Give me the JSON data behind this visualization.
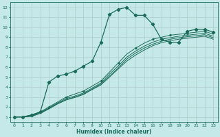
{
  "xlabel": "Humidex (Indice chaleur)",
  "bg_color": "#c5e8e8",
  "grid_color": "#b0cccc",
  "line_color": "#1a6b5a",
  "xlim": [
    -0.5,
    23.5
  ],
  "ylim": [
    0.5,
    12.5
  ],
  "xticks": [
    0,
    1,
    2,
    3,
    4,
    5,
    6,
    7,
    8,
    9,
    10,
    11,
    12,
    13,
    14,
    15,
    16,
    17,
    18,
    19,
    20,
    21,
    22,
    23
  ],
  "yticks": [
    1,
    2,
    3,
    4,
    5,
    6,
    7,
    8,
    9,
    10,
    11,
    12
  ],
  "curve_x": [
    0,
    1,
    2,
    3,
    4,
    5,
    6,
    7,
    8,
    9,
    10,
    11,
    12,
    13,
    14,
    15,
    16,
    17,
    18,
    19,
    20,
    21,
    22,
    23
  ],
  "curve_y": [
    1,
    1,
    1.2,
    1.5,
    4.5,
    5.1,
    5.3,
    5.6,
    6.1,
    6.6,
    8.5,
    11.3,
    11.8,
    12.0,
    11.2,
    11.2,
    10.3,
    8.8,
    8.5,
    8.5,
    9.6,
    9.8,
    9.8,
    9.5
  ],
  "lin1_x": [
    0,
    1,
    2,
    3,
    4,
    5,
    6,
    7,
    8,
    9,
    10,
    11,
    12,
    13,
    14,
    15,
    16,
    17,
    18,
    19,
    20,
    21,
    22,
    23
  ],
  "lin1_y": [
    1,
    1,
    1.2,
    1.5,
    2.0,
    2.5,
    3.0,
    3.3,
    3.6,
    4.1,
    4.6,
    5.5,
    6.4,
    7.3,
    7.9,
    8.4,
    8.8,
    9.0,
    9.2,
    9.3,
    9.4,
    9.5,
    9.6,
    9.3
  ],
  "lin2_x": [
    0,
    1,
    2,
    3,
    4,
    5,
    6,
    7,
    8,
    9,
    10,
    11,
    12,
    13,
    14,
    15,
    16,
    17,
    18,
    19,
    20,
    21,
    22,
    23
  ],
  "lin2_y": [
    1,
    1,
    1.15,
    1.45,
    1.9,
    2.4,
    2.85,
    3.1,
    3.4,
    3.9,
    4.4,
    5.3,
    6.1,
    7.0,
    7.6,
    8.1,
    8.5,
    8.8,
    8.95,
    9.1,
    9.2,
    9.3,
    9.4,
    9.1
  ],
  "lin3_x": [
    0,
    1,
    2,
    3,
    4,
    5,
    6,
    7,
    8,
    9,
    10,
    11,
    12,
    13,
    14,
    15,
    16,
    17,
    18,
    19,
    20,
    21,
    22,
    23
  ],
  "lin3_y": [
    1,
    1,
    1.1,
    1.4,
    1.85,
    2.35,
    2.75,
    3.0,
    3.3,
    3.8,
    4.3,
    5.1,
    5.9,
    6.8,
    7.4,
    7.9,
    8.3,
    8.6,
    8.8,
    8.95,
    9.05,
    9.15,
    9.25,
    8.95
  ],
  "lin4_x": [
    0,
    1,
    2,
    3,
    4,
    5,
    6,
    7,
    8,
    9,
    10,
    11,
    12,
    13,
    14,
    15,
    16,
    17,
    18,
    19,
    20,
    21,
    22,
    23
  ],
  "lin4_y": [
    1,
    1,
    1.05,
    1.35,
    1.8,
    2.3,
    2.7,
    2.95,
    3.25,
    3.75,
    4.2,
    5.0,
    5.8,
    6.6,
    7.2,
    7.7,
    8.15,
    8.45,
    8.65,
    8.8,
    8.9,
    9.0,
    9.1,
    8.8
  ]
}
